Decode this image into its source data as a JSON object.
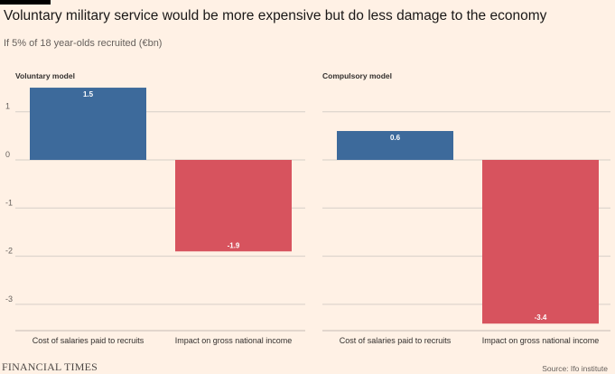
{
  "header": {
    "title": "Voluntary military service would be more expensive but do less damage to the economy",
    "subtitle": "If 5% of 18 year-olds recruited (€bn)"
  },
  "footer": {
    "brand": "FINANCIAL TIMES",
    "source": "Source: Ifo institute"
  },
  "colors": {
    "positive": "#3d6a9b",
    "negative": "#d7535e",
    "background": "#fff1e5",
    "grid": "#d6cfc8"
  },
  "chart_data": [
    {
      "type": "bar",
      "title": "Voluntary model",
      "categories": [
        "Cost of salaries paid to recruits",
        "Impact on gross national income"
      ],
      "values": [
        1.5,
        -1.9
      ],
      "data_labels": [
        "1.5",
        "-1.9"
      ],
      "yticks": [
        1,
        0,
        -1,
        -2,
        -3
      ],
      "ytick_labels": [
        "1",
        "0",
        "-1",
        "-2",
        "-3"
      ],
      "ylim": [
        -3.4,
        1.5
      ],
      "grid": true
    },
    {
      "type": "bar",
      "title": "Compulsory model",
      "categories": [
        "Cost of salaries paid to recruits",
        "Impact on gross national income"
      ],
      "values": [
        0.6,
        -3.4
      ],
      "data_labels": [
        "0.6",
        "-3.4"
      ],
      "yticks": [
        1,
        0,
        -1,
        -2,
        -3
      ],
      "ytick_labels": [
        "",
        "",
        "",
        "",
        ""
      ],
      "ylim": [
        -3.4,
        1.5
      ],
      "grid": true
    }
  ]
}
